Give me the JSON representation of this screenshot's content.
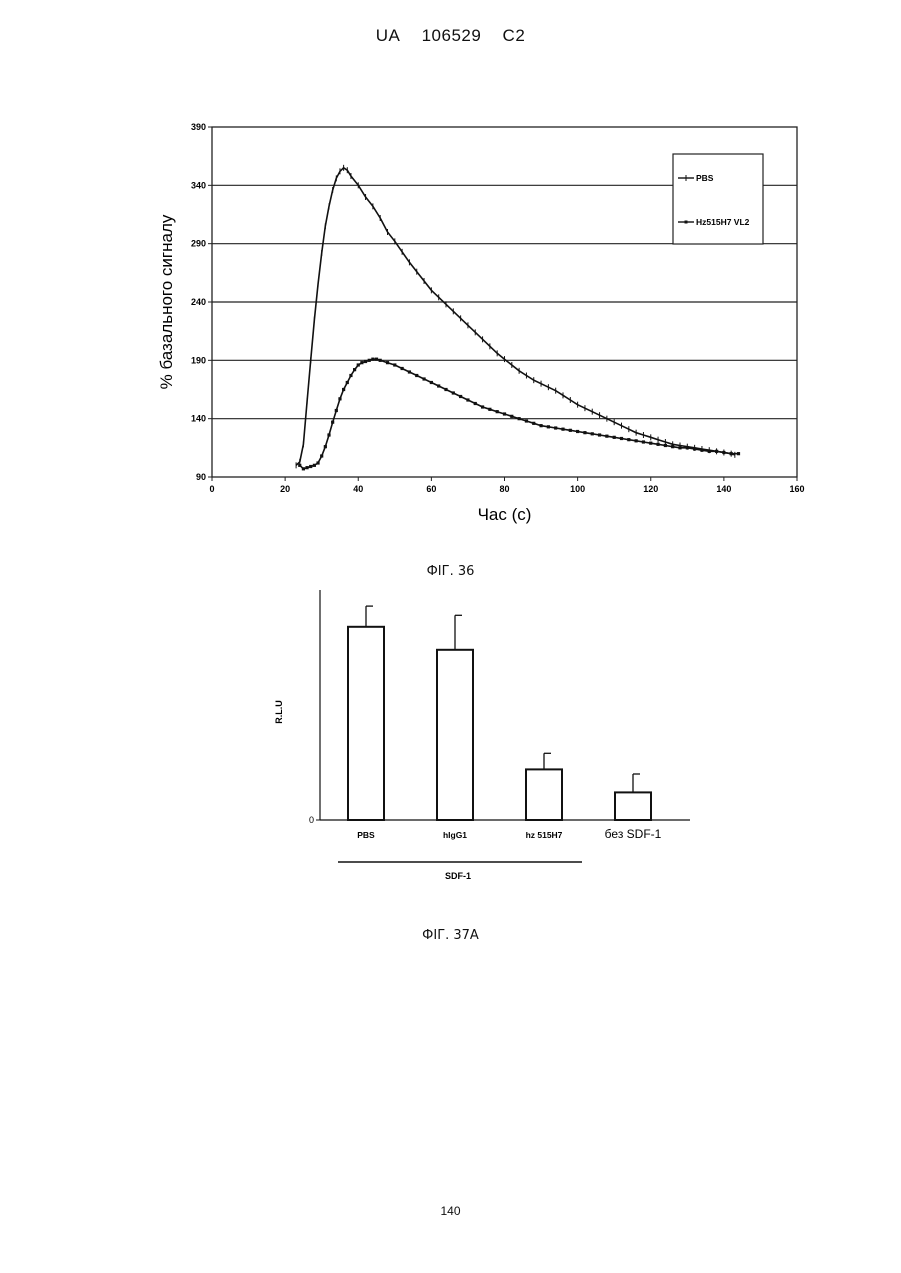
{
  "document": {
    "header": {
      "country": "UA",
      "number": "106529",
      "kind": "C2"
    },
    "page_number": "140",
    "fig36_caption": "ФІГ. 36",
    "fig37a_caption": "ФІГ. 37А"
  },
  "chart_data": [
    {
      "type": "line",
      "title": "",
      "xlabel": "Час (с)",
      "ylabel": "% базального сигналу",
      "xlim": [
        0,
        160
      ],
      "ylim": [
        90,
        390
      ],
      "x_ticks": [
        0,
        20,
        40,
        60,
        80,
        100,
        120,
        140,
        160
      ],
      "y_ticks": [
        90,
        140,
        190,
        240,
        290,
        340,
        390
      ],
      "grid": "horizontal",
      "legend_position": "top-right",
      "series": [
        {
          "name": "PBS",
          "x": [
            23,
            24,
            25,
            26,
            27,
            28,
            29,
            30,
            31,
            32,
            33,
            34,
            35,
            36,
            37,
            38,
            40,
            42,
            44,
            46,
            48,
            50,
            52,
            54,
            56,
            58,
            60,
            62,
            64,
            66,
            68,
            70,
            72,
            74,
            76,
            78,
            80,
            82,
            84,
            86,
            88,
            90,
            92,
            94,
            96,
            98,
            100,
            102,
            104,
            106,
            108,
            110,
            112,
            114,
            116,
            118,
            120,
            122,
            124,
            126,
            128,
            130,
            132,
            134,
            136,
            138,
            140,
            142,
            143
          ],
          "y": [
            100,
            103,
            118,
            155,
            190,
            225,
            255,
            282,
            305,
            322,
            336,
            346,
            352,
            355,
            353,
            348,
            340,
            330,
            322,
            312,
            300,
            292,
            283,
            274,
            266,
            258,
            250,
            244,
            238,
            232,
            226,
            220,
            214,
            208,
            202,
            196,
            191,
            186,
            181,
            177,
            173,
            170,
            167,
            164,
            160,
            156,
            152,
            149,
            146,
            143,
            140,
            137,
            134,
            131,
            128,
            126,
            124,
            122,
            120,
            118,
            117,
            116,
            115,
            114,
            113,
            112,
            111,
            110,
            109
          ]
        },
        {
          "name": "Hz515H7 VL2",
          "x": [
            24,
            25,
            26,
            27,
            28,
            29,
            30,
            31,
            32,
            33,
            34,
            35,
            36,
            37,
            38,
            39,
            40,
            41,
            42,
            43,
            44,
            45,
            46,
            48,
            50,
            52,
            54,
            56,
            58,
            60,
            62,
            64,
            66,
            68,
            70,
            72,
            74,
            76,
            78,
            80,
            82,
            84,
            86,
            88,
            90,
            92,
            94,
            96,
            98,
            100,
            102,
            104,
            106,
            108,
            110,
            112,
            114,
            116,
            118,
            120,
            122,
            124,
            126,
            128,
            130,
            132,
            134,
            136,
            138,
            140,
            142,
            144
          ],
          "y": [
            100,
            97,
            98,
            99,
            100,
            102,
            108,
            116,
            126,
            137,
            147,
            157,
            165,
            171,
            177,
            182,
            186,
            188,
            189,
            190,
            191,
            191,
            190,
            188,
            186,
            183,
            180,
            177,
            174,
            171,
            168,
            165,
            162,
            159,
            156,
            153,
            150,
            148,
            146,
            144,
            142,
            140,
            138,
            136,
            134,
            133,
            132,
            131,
            130,
            129,
            128,
            127,
            126,
            125,
            124,
            123,
            122,
            121,
            120,
            119,
            118,
            117,
            116,
            115,
            115,
            114,
            113,
            112,
            112,
            111,
            110,
            110
          ]
        }
      ]
    },
    {
      "type": "bar",
      "title": "",
      "ylabel": "R.L.U",
      "ytick_label": "0",
      "ylim": [
        0,
        100
      ],
      "categories": [
        "PBS",
        "hIgG1",
        "hz 515H7",
        "без SDF-1"
      ],
      "values": [
        84,
        74,
        22,
        12
      ],
      "errors": [
        9,
        15,
        7,
        8
      ],
      "group_label": "SDF-1",
      "group_members": [
        "PBS",
        "hIgG1",
        "hz 515H7"
      ]
    }
  ]
}
